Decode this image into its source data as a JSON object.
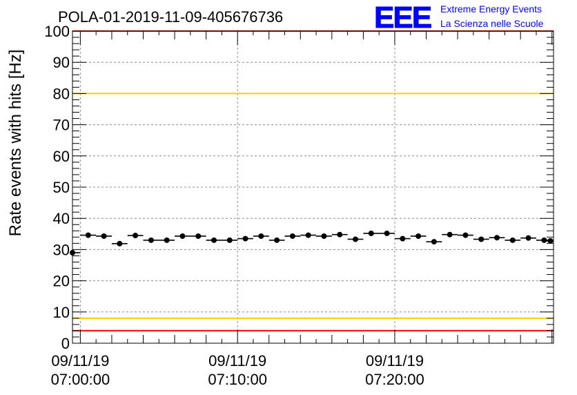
{
  "chart_data": {
    "type": "scatter",
    "title": "POLA-01-2019-11-09-405676736",
    "ylabel": "Rate events with hits [Hz]",
    "xlabel": "",
    "ylim": [
      0,
      100
    ],
    "y_ticks": [
      0,
      10,
      20,
      30,
      40,
      50,
      60,
      70,
      80,
      90,
      100
    ],
    "x_range_minutes": [
      -0.5,
      30.1
    ],
    "x_tick_labels": [
      {
        "minute": 0,
        "date": "09/11/19",
        "time": "07:00:00"
      },
      {
        "minute": 10,
        "date": "09/11/19",
        "time": "07:10:00"
      },
      {
        "minute": 20,
        "date": "09/11/19",
        "time": "07:20:00"
      }
    ],
    "grid": true,
    "thresholds": [
      {
        "value": 100,
        "color": "#ff0000"
      },
      {
        "value": 80,
        "color": "#ffcc00"
      },
      {
        "value": 8,
        "color": "#ffcc00"
      },
      {
        "value": 4,
        "color": "#ff0000"
      }
    ],
    "series": [
      {
        "color": "#000000",
        "bin_width_minutes": 1,
        "x_minutes": [
          -0.5,
          0.5,
          1.5,
          2.5,
          3.5,
          4.5,
          5.5,
          6.5,
          7.5,
          8.5,
          9.5,
          10.5,
          11.5,
          12.5,
          13.5,
          14.5,
          15.5,
          16.5,
          17.5,
          18.5,
          19.5,
          20.5,
          21.5,
          22.5,
          23.5,
          24.5,
          25.5,
          26.5,
          27.5,
          28.5,
          29.5,
          29.9
        ],
        "values": [
          29.0,
          34.6,
          34.3,
          31.9,
          34.5,
          33.0,
          33.0,
          34.3,
          34.3,
          33.0,
          33.0,
          33.5,
          34.3,
          33.0,
          34.3,
          34.6,
          34.3,
          34.8,
          33.3,
          35.2,
          35.2,
          33.5,
          34.3,
          32.5,
          34.8,
          34.6,
          33.3,
          33.8,
          33.0,
          33.7,
          33.0,
          32.8
        ]
      }
    ]
  },
  "logo": {
    "mark": "EEE",
    "line1": "Extreme Energy Events",
    "line2": "La Scienza nelle Scuole",
    "color": "#0000ff"
  }
}
